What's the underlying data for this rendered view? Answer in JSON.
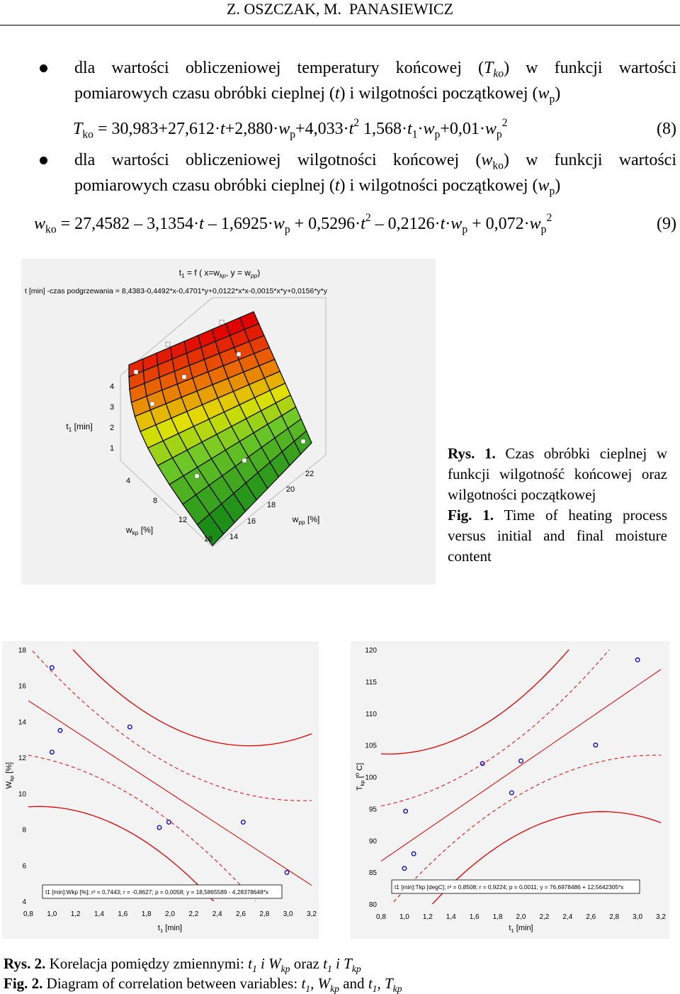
{
  "header": "Z. OSZCZAK, M.  PANASIEWICZ",
  "blocks": [
    {
      "kind": "bullet",
      "parts": [
        {
          "t": "dla wartości obliczeniowej temperatury końcowej ("
        },
        {
          "t": "T",
          "s": "i"
        },
        {
          "t": "ko",
          "s": "sub-i"
        },
        {
          "t": ") w funkcji wartości pomiarowych czasu obróbki cieplnej ("
        },
        {
          "t": "t",
          "s": "i"
        },
        {
          "t": ") i wilgotności początkowej ("
        },
        {
          "t": "w",
          "s": "i"
        },
        {
          "t": "p",
          "s": "sub"
        },
        {
          "t": ")"
        }
      ]
    },
    {
      "kind": "equation",
      "number": "(8)",
      "parts": [
        {
          "t": "T",
          "s": "i"
        },
        {
          "t": "ko",
          "s": "sub"
        },
        {
          "t": " = 30,983+27,612·"
        },
        {
          "t": "t",
          "s": "i"
        },
        {
          "t": "+2,880·"
        },
        {
          "t": "w",
          "s": "i"
        },
        {
          "t": "p",
          "s": "sub"
        },
        {
          "t": "+4,033·"
        },
        {
          "t": "t",
          "s": "i"
        },
        {
          "t": "2",
          "s": "sup"
        },
        {
          "t": " 1,568·"
        },
        {
          "t": "t",
          "s": "i"
        },
        {
          "t": "1",
          "s": "sub"
        },
        {
          "t": "·"
        },
        {
          "t": "w",
          "s": "i"
        },
        {
          "t": "p",
          "s": "sub"
        },
        {
          "t": "+0,01·"
        },
        {
          "t": "w",
          "s": "i"
        },
        {
          "t": "p",
          "s": "sub"
        },
        {
          "t": "2",
          "s": "sup"
        }
      ]
    },
    {
      "kind": "bullet",
      "parts": [
        {
          "t": "dla wartości obliczeniowej wilgotności końcowej ("
        },
        {
          "t": "w",
          "s": "i"
        },
        {
          "t": "ko",
          "s": "sub"
        },
        {
          "t": ") w funkcji wartości pomiarowych czasu obróbki cieplnej ("
        },
        {
          "t": "t",
          "s": "i"
        },
        {
          "t": ") i wilgotności początkowej ("
        },
        {
          "t": "w",
          "s": "i"
        },
        {
          "t": "p",
          "s": "sub"
        },
        {
          "t": ")"
        }
      ]
    },
    {
      "kind": "equation",
      "number": "(9)",
      "parts": [
        {
          "t": "w",
          "s": "i"
        },
        {
          "t": "ko",
          "s": "sub"
        },
        {
          "t": " = 27,4582 – 3,1354·"
        },
        {
          "t": "t",
          "s": "i"
        },
        {
          "t": " – 1,6925·"
        },
        {
          "t": "w",
          "s": "i"
        },
        {
          "t": "p",
          "s": "sub"
        },
        {
          "t": " + 0,5296·"
        },
        {
          "t": "t",
          "s": "i"
        },
        {
          "t": "2",
          "s": "sup"
        },
        {
          "t": " – 0,2126·"
        },
        {
          "t": "t",
          "s": "i"
        },
        {
          "t": "·"
        },
        {
          "t": "w",
          "s": "i"
        },
        {
          "t": "p",
          "s": "sub"
        },
        {
          "t": " + 0,072·"
        },
        {
          "t": "w",
          "s": "i"
        },
        {
          "t": "p",
          "s": "sub"
        },
        {
          "t": "2",
          "s": "sup"
        }
      ]
    }
  ],
  "figure1": {
    "title": [
      {
        "t": "t"
      },
      {
        "t": "1",
        "s": "sub"
      },
      {
        "t": " = f ( x=w"
      },
      {
        "t": "kp",
        "s": "sub-i"
      },
      {
        "t": ", y = w"
      },
      {
        "t": "pp",
        "s": "sub-i"
      },
      {
        "t": ")"
      }
    ],
    "formula": "t [min] -czas podgrzewania = 8,4383-0,4492*x-0,4701*y+0,0122*x*x-0,0015*x*y+0,0156*y*y",
    "z_label": [
      {
        "t": "t"
      },
      {
        "t": "1",
        "s": "sub"
      },
      {
        "t": " [min]"
      }
    ],
    "z_ticks": [
      "1",
      "2",
      "3",
      "4"
    ],
    "x_label": [
      {
        "t": "w"
      },
      {
        "t": "kp",
        "s": "sub"
      },
      {
        "t": " [%]"
      }
    ],
    "x_ticks": [
      "4",
      "8",
      "12",
      "16"
    ],
    "y_label": [
      {
        "t": "w"
      },
      {
        "t": "pp",
        "s": "sub"
      },
      {
        "t": " [%]"
      }
    ],
    "y_ticks": [
      "14",
      "16",
      "18",
      "20",
      "22"
    ],
    "caption": [
      [
        {
          "t": "Rys. 1.",
          "s": "b"
        },
        {
          "t": " Czas obróbki cieplnej w funkcji wilgotność końcowej oraz wilgotności początkowej"
        }
      ],
      [
        {
          "t": "Fig. 1.",
          "s": "b"
        },
        {
          "t": " Time of heating process versus initial and final moisture content"
        }
      ]
    ]
  },
  "chart_data": [
    {
      "type": "scatter",
      "x": [
        1.0,
        1.07,
        1.0,
        1.66,
        1.91,
        1.99,
        2.62,
        2.99
      ],
      "values": [
        17.0,
        13.5,
        12.3,
        13.7,
        8.1,
        8.4,
        8.4,
        5.6
      ],
      "xlim": [
        0.8,
        3.2
      ],
      "xticks": [
        {
          "value": 0.8,
          "label": "0,8"
        },
        {
          "value": 1.0,
          "label": "1,0"
        },
        {
          "value": 1.2,
          "label": "1,2"
        },
        {
          "value": 1.4,
          "label": "1,4"
        },
        {
          "value": 1.6,
          "label": "1,6"
        },
        {
          "value": 1.8,
          "label": "1,8"
        },
        {
          "value": 2.0,
          "label": "2,0"
        },
        {
          "value": 2.2,
          "label": "2,2"
        },
        {
          "value": 2.4,
          "label": "2,4"
        },
        {
          "value": 2.6,
          "label": "2,6"
        },
        {
          "value": 2.8,
          "label": "2,8"
        },
        {
          "value": 3.0,
          "label": "3,0"
        },
        {
          "value": 3.2,
          "label": "3,2"
        }
      ],
      "ylim": [
        4,
        18
      ],
      "yticks": [
        4,
        6,
        8,
        10,
        12,
        14,
        16,
        18
      ],
      "xlabel": [
        {
          "t": "t"
        },
        {
          "t": "1",
          "s": "sub"
        },
        {
          "t": " [min]"
        }
      ],
      "ylabel": [
        {
          "t": "W"
        },
        {
          "t": "kp",
          "s": "sub"
        },
        {
          "t": " [%]"
        }
      ],
      "legend": "t1 [min]:Wkp [%];  r² = 0,7443;  r = -0,8627; p = 0,0058;  y = 18,5865589 - 4,28378648*x",
      "fit": {
        "intercept": 18.5865589,
        "slope": -4.28378648
      },
      "color": "#0000cc",
      "line_color": "#e00000",
      "grid": false
    },
    {
      "type": "scatter",
      "x": [
        1.01,
        1.08,
        1.0,
        1.67,
        2.0,
        1.92,
        2.64,
        3.0
      ],
      "values": [
        94.6,
        87.9,
        85.6,
        102.1,
        102.5,
        97.5,
        105.0,
        118.4
      ],
      "xlim": [
        0.8,
        3.2
      ],
      "xticks": [
        {
          "value": 0.8,
          "label": "0,8"
        },
        {
          "value": 1.0,
          "label": "1,0"
        },
        {
          "value": 1.2,
          "label": "1,2"
        },
        {
          "value": 1.4,
          "label": "1,4"
        },
        {
          "value": 1.6,
          "label": "1,6"
        },
        {
          "value": 1.8,
          "label": "1,8"
        },
        {
          "value": 2.0,
          "label": "2,0"
        },
        {
          "value": 2.2,
          "label": "2,2"
        },
        {
          "value": 2.4,
          "label": "2,4"
        },
        {
          "value": 2.6,
          "label": "2,6"
        },
        {
          "value": 2.8,
          "label": "2,8"
        },
        {
          "value": 3.0,
          "label": "3,0"
        },
        {
          "value": 3.2,
          "label": "3,2"
        }
      ],
      "ylim": [
        80,
        120
      ],
      "yticks": [
        80,
        85,
        90,
        95,
        100,
        105,
        110,
        115,
        120
      ],
      "xlabel": [
        {
          "t": "t"
        },
        {
          "t": "1",
          "s": "sub"
        },
        {
          "t": " [min]"
        }
      ],
      "ylabel": [
        {
          "t": "T"
        },
        {
          "t": "kp",
          "s": "sub"
        },
        {
          "t": " ["
        },
        {
          "t": "0",
          "s": "sup"
        },
        {
          "t": " C]"
        }
      ],
      "legend": "t1 [min]:Tkp [degC];  r² = 0,8508;  r = 0,9224; p = 0,0011;  y = 76,6978486 + 12,5642305*x",
      "fit": {
        "intercept": 76.6978486,
        "slope": 12.5642305
      },
      "color": "#0000cc",
      "line_color": "#e00000",
      "grid": false
    }
  ],
  "caption2": [
    [
      {
        "t": "Rys. 2.",
        "s": "b"
      },
      {
        "t": " Korelacja pomiędzy zmiennymi: "
      },
      {
        "t": "t",
        "s": "i"
      },
      {
        "t": "1",
        "s": "sub-i"
      },
      {
        "t": " i W",
        "s": "i"
      },
      {
        "t": "kp",
        "s": "sub-i"
      },
      {
        "t": " oraz "
      },
      {
        "t": "t",
        "s": "i"
      },
      {
        "t": "1",
        "s": "sub-i"
      },
      {
        "t": " i T",
        "s": "i"
      },
      {
        "t": "kp",
        "s": "sub-i"
      }
    ],
    [
      {
        "t": "Fig. 2.",
        "s": "b"
      },
      {
        "t": " Diagram of correlation between variables: "
      },
      {
        "t": "t",
        "s": "i"
      },
      {
        "t": "1",
        "s": "sub-i"
      },
      {
        "t": ", W",
        "s": "i"
      },
      {
        "t": "kp",
        "s": "sub-i"
      },
      {
        "t": " and "
      },
      {
        "t": "t",
        "s": "i"
      },
      {
        "t": "1",
        "s": "sub-i"
      },
      {
        "t": ", T",
        "s": "i"
      },
      {
        "t": "kp",
        "s": "sub-i"
      }
    ]
  ]
}
